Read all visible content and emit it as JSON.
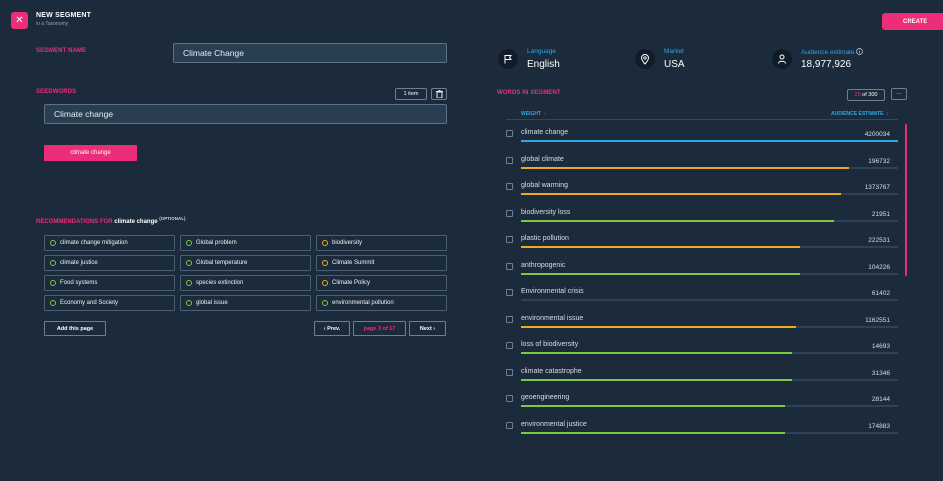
{
  "header": {
    "title": "NEW SEGMENT",
    "subtitle": "in a Taxonomy",
    "close_icon": "close-icon",
    "create_label": "CREATE"
  },
  "segment_name": {
    "label": "SEGMENT NAME",
    "value": "Climate Change"
  },
  "seedwords": {
    "label": "SEEDWORDS",
    "count_label": "1 item",
    "input_value": "Climate change",
    "chip": "climate change",
    "delete_icon": "trash-icon"
  },
  "recommendations": {
    "title_prefix": "RECOMMENDATIONS FOR",
    "title_term": "climate change",
    "optional": "(OPTIONAL)",
    "items": [
      {
        "label": "climate change mitigation",
        "color": "#7ac943"
      },
      {
        "label": "Global problem",
        "color": "#7ac943"
      },
      {
        "label": "biodiversity",
        "color": "#f4a622"
      },
      {
        "label": "climate justice",
        "color": "#7ac943"
      },
      {
        "label": "Global temperature",
        "color": "#7ac943"
      },
      {
        "label": "Climate Summit",
        "color": "#f4a622"
      },
      {
        "label": "Food systems",
        "color": "#7ac943"
      },
      {
        "label": "species extinction",
        "color": "#7ac943"
      },
      {
        "label": "Climate Policy",
        "color": "#f4a622"
      },
      {
        "label": "Economy and Society",
        "color": "#7ac943"
      },
      {
        "label": "global issue",
        "color": "#7ac943"
      },
      {
        "label": "environmental pollution",
        "color": "#7ac943"
      }
    ],
    "add_page_label": "Add this page",
    "prev_label": "‹ Prev.",
    "page_prefix": "page",
    "page_current": "3",
    "page_total_label": "of 17",
    "next_label": "Next ›"
  },
  "stats": {
    "language": {
      "label": "Language",
      "value": "English",
      "icon": "flag-icon"
    },
    "market": {
      "label": "Market",
      "value": "USA",
      "icon": "map-pin-icon"
    },
    "audience": {
      "label": "Audience estimate",
      "value": "18,977,926",
      "icon": "person-icon",
      "info_icon": "info-icon"
    }
  },
  "words": {
    "label": "WORDS IN SEGMENT",
    "count_current": "25",
    "count_total_label": "of 300",
    "more_label": "···",
    "col_weight": "WEIGHT",
    "col_audience": "AUDIENCE ESTIMATE",
    "colors": {
      "blue": "#2fa6e6",
      "orange": "#f4a622",
      "green": "#7ac943"
    },
    "rows": [
      {
        "term": "climate change",
        "audience": "4200034",
        "weight": 1.0,
        "color": "#2fa6e6"
      },
      {
        "term": "global climate",
        "audience": "196732",
        "weight": 0.87,
        "color": "#f4a622"
      },
      {
        "term": "global warming",
        "audience": "1373767",
        "weight": 0.85,
        "color": "#f4a622"
      },
      {
        "term": "biodiversity loss",
        "audience": "21951",
        "weight": 0.83,
        "color": "#7ac943"
      },
      {
        "term": "plastic pollution",
        "audience": "222531",
        "weight": 0.74,
        "color": "#f4a622"
      },
      {
        "term": "anthropogenic",
        "audience": "104226",
        "weight": 0.74,
        "color": "#7ac943"
      },
      {
        "term": "Environmental crisis",
        "audience": "61402",
        "weight": 0.0,
        "color": "#7ac943"
      },
      {
        "term": "environmental issue",
        "audience": "1162551",
        "weight": 0.73,
        "color": "#f4a622"
      },
      {
        "term": "loss of biodiversity",
        "audience": "14693",
        "weight": 0.72,
        "color": "#7ac943"
      },
      {
        "term": "climate catastrophe",
        "audience": "31346",
        "weight": 0.72,
        "color": "#7ac943"
      },
      {
        "term": "geoengineering",
        "audience": "28144",
        "weight": 0.7,
        "color": "#7ac943"
      },
      {
        "term": "environmental justice",
        "audience": "174883",
        "weight": 0.7,
        "color": "#7ac943"
      }
    ]
  }
}
